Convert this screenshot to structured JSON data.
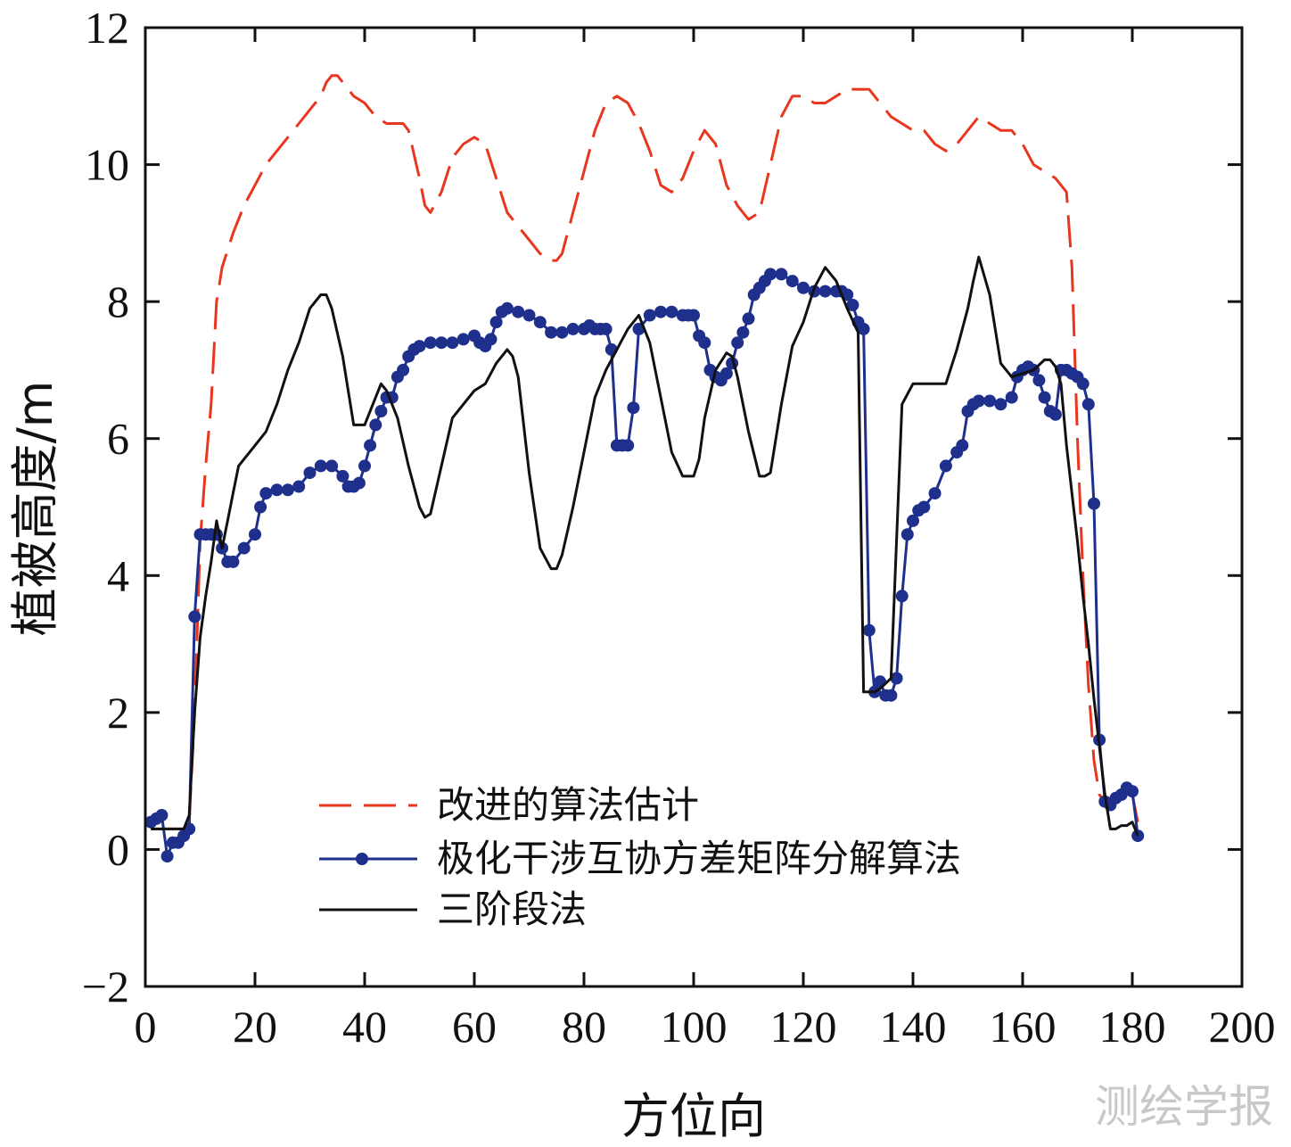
{
  "chart_data": {
    "type": "line",
    "title": "",
    "xlabel": "方位向",
    "ylabel": "植被高度/m",
    "xlim": [
      0,
      200
    ],
    "ylim": [
      -2,
      12
    ],
    "xticks": [
      0,
      20,
      40,
      60,
      80,
      100,
      120,
      140,
      160,
      180,
      200
    ],
    "yticks": [
      -2,
      0,
      2,
      4,
      6,
      8,
      10,
      12
    ],
    "xtick_labels": [
      "0",
      "20",
      "40",
      "60",
      "80",
      "100",
      "120",
      "140",
      "160",
      "180",
      "200"
    ],
    "ytick_labels": [
      "−2",
      "0",
      "2",
      "4",
      "6",
      "8",
      "10",
      "12"
    ],
    "grid": false,
    "legend_position": "bottom-left",
    "series": [
      {
        "name": "改进的算法估计",
        "color": "#e8371e",
        "style": "dashed",
        "x": [
          1,
          5,
          7,
          8,
          9,
          10,
          11,
          12,
          13,
          14,
          16,
          18,
          20,
          22,
          24,
          26,
          28,
          30,
          32,
          33,
          34,
          35,
          37,
          38,
          40,
          42,
          44,
          46,
          47,
          48,
          50,
          51,
          52,
          54,
          56,
          58,
          60,
          62,
          64,
          66,
          68,
          70,
          72,
          74,
          75,
          76,
          78,
          80,
          82,
          84,
          86,
          88,
          90,
          92,
          94,
          96,
          98,
          100,
          102,
          104,
          105,
          106,
          108,
          110,
          112,
          114,
          116,
          118,
          120,
          122,
          124,
          126,
          128,
          130,
          132,
          134,
          136,
          138,
          140,
          142,
          144,
          146,
          148,
          150,
          152,
          154,
          156,
          158,
          160,
          162,
          164,
          166,
          168,
          169,
          170,
          171,
          172,
          173,
          174,
          175,
          176,
          177,
          178,
          179,
          180,
          181
        ],
        "values": [
          0.3,
          0.3,
          0.3,
          0.4,
          2.0,
          4.5,
          5.6,
          6.5,
          8.0,
          8.5,
          9.0,
          9.4,
          9.7,
          10.0,
          10.2,
          10.4,
          10.6,
          10.8,
          11.0,
          11.2,
          11.3,
          11.3,
          11.1,
          11.0,
          10.9,
          10.7,
          10.6,
          10.6,
          10.6,
          10.5,
          9.8,
          9.4,
          9.3,
          9.6,
          10.1,
          10.3,
          10.4,
          10.3,
          9.8,
          9.3,
          9.1,
          8.9,
          8.7,
          8.6,
          8.6,
          8.7,
          9.3,
          9.9,
          10.5,
          10.9,
          11.0,
          10.9,
          10.6,
          10.2,
          9.7,
          9.6,
          9.8,
          10.2,
          10.5,
          10.3,
          10.0,
          9.7,
          9.4,
          9.2,
          9.3,
          10.0,
          10.7,
          11.0,
          11.0,
          10.9,
          10.9,
          11.0,
          11.1,
          11.1,
          11.1,
          10.9,
          10.7,
          10.6,
          10.5,
          10.5,
          10.3,
          10.2,
          10.3,
          10.5,
          10.7,
          10.6,
          10.5,
          10.5,
          10.3,
          10.0,
          9.9,
          9.8,
          9.6,
          8.5,
          6.0,
          4.0,
          2.4,
          1.3,
          0.8,
          0.7,
          0.7,
          0.75,
          0.8,
          0.9,
          0.8,
          0.4
        ]
      },
      {
        "name": "极化干涉互协方差矩阵分解算法",
        "color": "#1e2f8c",
        "style": "solid-marker",
        "x": [
          1,
          2,
          3,
          4,
          5,
          6,
          7,
          8,
          9,
          10,
          11,
          12,
          13,
          14,
          15,
          16,
          18,
          20,
          21,
          22,
          24,
          26,
          28,
          30,
          32,
          34,
          36,
          37,
          38,
          39,
          40,
          41,
          42,
          43,
          44,
          45,
          46,
          47,
          48,
          49,
          50,
          52,
          54,
          56,
          58,
          60,
          61,
          62,
          63,
          64,
          65,
          66,
          68,
          70,
          72,
          74,
          76,
          78,
          80,
          81,
          82,
          83,
          84,
          85,
          86,
          87,
          88,
          89,
          90,
          92,
          94,
          96,
          98,
          99,
          100,
          101,
          102,
          103,
          104,
          105,
          106,
          107,
          108,
          109,
          110,
          111,
          112,
          113,
          114,
          116,
          118,
          120,
          122,
          124,
          126,
          127,
          128,
          129,
          130,
          131,
          132,
          133,
          134,
          135,
          136,
          137,
          138,
          139,
          140,
          141,
          142,
          144,
          146,
          148,
          149,
          150,
          151,
          152,
          154,
          156,
          158,
          159,
          160,
          161,
          162,
          163,
          164,
          165,
          166,
          167,
          168,
          169,
          170,
          171,
          172,
          173,
          174,
          175,
          176,
          177,
          178,
          179,
          180,
          181
        ],
        "values": [
          0.4,
          0.45,
          0.5,
          -0.1,
          0.1,
          0.1,
          0.2,
          0.3,
          3.4,
          4.6,
          4.6,
          4.6,
          4.6,
          4.4,
          4.2,
          4.2,
          4.4,
          4.6,
          5.0,
          5.2,
          5.25,
          5.25,
          5.3,
          5.5,
          5.6,
          5.6,
          5.45,
          5.3,
          5.3,
          5.35,
          5.6,
          5.9,
          6.2,
          6.4,
          6.6,
          6.6,
          6.9,
          7.0,
          7.2,
          7.3,
          7.35,
          7.4,
          7.4,
          7.4,
          7.45,
          7.5,
          7.4,
          7.35,
          7.45,
          7.7,
          7.85,
          7.9,
          7.85,
          7.8,
          7.7,
          7.55,
          7.55,
          7.6,
          7.6,
          7.65,
          7.6,
          7.6,
          7.6,
          7.3,
          5.9,
          5.9,
          5.9,
          6.45,
          7.6,
          7.8,
          7.85,
          7.85,
          7.8,
          7.8,
          7.8,
          7.5,
          7.4,
          7.0,
          6.9,
          6.85,
          6.95,
          7.1,
          7.4,
          7.55,
          7.75,
          8.1,
          8.2,
          8.3,
          8.4,
          8.4,
          8.3,
          8.2,
          8.15,
          8.15,
          8.15,
          8.15,
          8.1,
          7.95,
          7.7,
          7.6,
          3.2,
          2.3,
          2.45,
          2.25,
          2.25,
          2.5,
          3.7,
          4.6,
          4.8,
          4.95,
          5.0,
          5.2,
          5.6,
          5.8,
          5.9,
          6.4,
          6.5,
          6.55,
          6.55,
          6.5,
          6.6,
          6.9,
          7.0,
          7.05,
          7.0,
          6.85,
          6.6,
          6.4,
          6.35,
          7.0,
          7.0,
          6.95,
          6.9,
          6.8,
          6.5,
          5.05,
          1.6,
          0.7,
          0.65,
          0.75,
          0.8,
          0.9,
          0.85,
          0.2
        ]
      },
      {
        "name": "三阶段法",
        "color": "#111111",
        "style": "solid",
        "x": [
          1,
          5,
          7,
          8,
          9,
          10,
          11,
          12,
          13,
          14,
          15,
          16,
          17,
          18,
          20,
          22,
          24,
          26,
          28,
          30,
          32,
          33,
          34,
          36,
          38,
          40,
          42,
          43,
          44,
          46,
          48,
          50,
          51,
          52,
          54,
          56,
          58,
          60,
          62,
          64,
          66,
          67,
          68,
          70,
          72,
          74,
          75,
          76,
          78,
          80,
          82,
          84,
          86,
          88,
          90,
          92,
          94,
          96,
          98,
          100,
          101,
          102,
          104,
          106,
          107,
          108,
          110,
          112,
          113,
          114,
          116,
          118,
          120,
          122,
          124,
          126,
          128,
          130,
          131,
          132,
          133,
          134,
          136,
          138,
          140,
          142,
          144,
          146,
          148,
          150,
          151,
          152,
          154,
          156,
          158,
          160,
          162,
          164,
          165,
          166,
          167,
          168,
          169,
          170,
          171,
          172,
          173,
          174,
          175,
          176,
          177,
          178,
          179,
          180,
          181
        ],
        "values": [
          0.3,
          0.3,
          0.3,
          0.5,
          2.0,
          3.1,
          3.7,
          4.2,
          4.8,
          4.4,
          4.8,
          5.2,
          5.6,
          5.7,
          5.9,
          6.1,
          6.5,
          7.0,
          7.4,
          7.9,
          8.1,
          8.1,
          7.9,
          7.2,
          6.2,
          6.2,
          6.6,
          6.8,
          6.7,
          6.3,
          5.6,
          5.0,
          4.85,
          4.9,
          5.6,
          6.3,
          6.5,
          6.7,
          6.8,
          7.1,
          7.3,
          7.2,
          6.9,
          5.5,
          4.4,
          4.1,
          4.1,
          4.3,
          5.0,
          5.8,
          6.6,
          7.0,
          7.3,
          7.6,
          7.8,
          7.4,
          6.6,
          5.8,
          5.45,
          5.45,
          5.7,
          6.3,
          7.0,
          7.25,
          7.2,
          6.9,
          6.1,
          5.45,
          5.45,
          5.5,
          6.5,
          7.35,
          7.7,
          8.2,
          8.5,
          8.3,
          7.9,
          7.55,
          2.3,
          2.3,
          2.3,
          2.35,
          2.5,
          6.5,
          6.8,
          6.8,
          6.8,
          6.8,
          7.3,
          7.9,
          8.3,
          8.65,
          8.1,
          7.1,
          6.9,
          6.95,
          7.0,
          7.15,
          7.15,
          7.05,
          6.8,
          5.9,
          5.2,
          4.5,
          3.7,
          3.0,
          2.2,
          1.5,
          0.8,
          0.3,
          0.3,
          0.35,
          0.35,
          0.4,
          0.2
        ]
      }
    ]
  },
  "watermark": "测绘学报"
}
